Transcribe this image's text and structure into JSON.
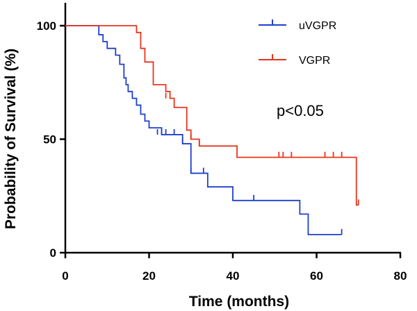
{
  "chart_data": {
    "type": "line",
    "subtype": "kaplan-meier step curve",
    "xlabel": "Time (months)",
    "ylabel": "Probability of Survival (%)",
    "xlim": [
      0,
      80
    ],
    "ylim": [
      0,
      110
    ],
    "xticks": [
      0,
      20,
      40,
      60,
      80
    ],
    "yticks": [
      0,
      50,
      100
    ],
    "x_tick_labels": [
      "0",
      "20",
      "40",
      "60",
      "80"
    ],
    "y_tick_labels": [
      "0",
      "50",
      "100"
    ],
    "grid": false,
    "legend_position": "top-right",
    "annotation": "p<0.05",
    "series": [
      {
        "name": "uVGPR",
        "color": "#1f3fcc",
        "steps": [
          [
            0,
            100
          ],
          [
            6,
            100
          ],
          [
            8,
            96
          ],
          [
            9,
            93
          ],
          [
            10,
            90
          ],
          [
            12,
            87
          ],
          [
            13,
            83
          ],
          [
            14,
            77
          ],
          [
            14.5,
            74
          ],
          [
            15,
            71
          ],
          [
            16,
            68
          ],
          [
            17,
            65
          ],
          [
            18,
            61
          ],
          [
            19,
            58
          ],
          [
            20,
            55
          ],
          [
            23,
            52
          ],
          [
            27,
            52
          ],
          [
            28,
            48
          ],
          [
            30,
            35
          ],
          [
            34,
            29
          ],
          [
            40,
            23
          ],
          [
            56,
            17
          ],
          [
            58,
            8
          ],
          [
            66,
            8
          ]
        ],
        "censored": [
          [
            22,
            52
          ],
          [
            23,
            52
          ],
          [
            24,
            52
          ],
          [
            26,
            52
          ],
          [
            28,
            48
          ],
          [
            30,
            35
          ],
          [
            33,
            35
          ],
          [
            45,
            23
          ],
          [
            66,
            8
          ]
        ]
      },
      {
        "name": "VGPR",
        "color": "#e8341c",
        "steps": [
          [
            0,
            100
          ],
          [
            15,
            100
          ],
          [
            17,
            97
          ],
          [
            18,
            90
          ],
          [
            19,
            84
          ],
          [
            21,
            74
          ],
          [
            24,
            71
          ],
          [
            25,
            68
          ],
          [
            26,
            64
          ],
          [
            29,
            54
          ],
          [
            30,
            50
          ],
          [
            32,
            47
          ],
          [
            41,
            42
          ],
          [
            69,
            42
          ],
          [
            69.5,
            21
          ],
          [
            70,
            21
          ]
        ],
        "censored": [
          [
            24,
            68
          ],
          [
            30,
            50
          ],
          [
            32,
            47
          ],
          [
            51,
            42
          ],
          [
            52,
            42
          ],
          [
            54,
            42
          ],
          [
            62,
            42
          ],
          [
            64,
            42
          ],
          [
            66,
            42
          ],
          [
            70,
            21
          ]
        ]
      }
    ]
  }
}
